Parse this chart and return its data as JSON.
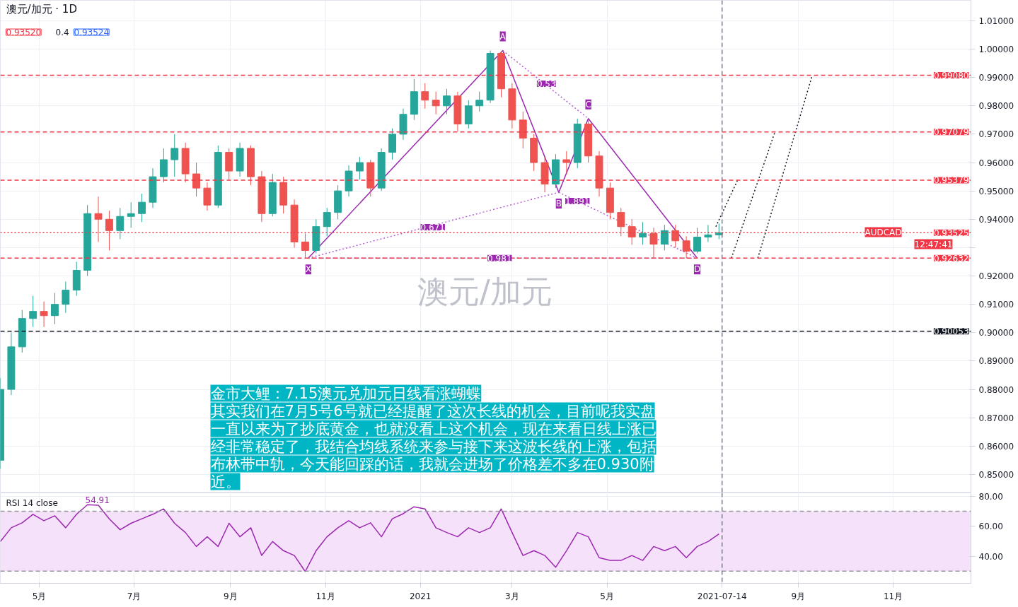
{
  "chart_data": [
    {
      "type": "candlestick",
      "title": "澳元/加元 · 1D",
      "x": [
        "2020-04-06",
        "2020-04-13",
        "2020-04-20",
        "2020-04-27",
        "2020-05-04",
        "2020-05-11",
        "2020-05-18",
        "2020-05-25",
        "2020-06-01",
        "2020-06-08",
        "2020-06-15",
        "2020-06-22",
        "2020-06-29",
        "2020-07-06",
        "2020-07-13",
        "2020-07-20",
        "2020-07-27",
        "2020-08-03",
        "2020-08-10",
        "2020-08-17",
        "2020-08-24",
        "2020-08-31",
        "2020-09-07",
        "2020-09-14",
        "2020-09-21",
        "2020-09-28",
        "2020-10-05",
        "2020-10-12",
        "2020-10-19",
        "2020-10-26",
        "2020-11-02",
        "2020-11-09",
        "2020-11-16",
        "2020-11-23",
        "2020-11-30",
        "2020-12-07",
        "2020-12-14",
        "2020-12-21",
        "2020-12-28",
        "2021-01-04",
        "2021-01-11",
        "2021-01-18",
        "2021-01-25",
        "2021-02-01",
        "2021-02-08",
        "2021-02-15",
        "2021-02-22",
        "2021-03-01",
        "2021-03-08",
        "2021-03-15",
        "2021-03-22",
        "2021-03-29",
        "2021-04-05",
        "2021-04-12",
        "2021-04-19",
        "2021-04-26",
        "2021-05-03",
        "2021-05-10",
        "2021-05-17",
        "2021-05-24",
        "2021-05-31",
        "2021-06-07",
        "2021-06-14",
        "2021-06-21",
        "2021-06-28",
        "2021-07-05",
        "2021-07-12"
      ],
      "ohlc": [
        [
          0.855,
          0.884,
          0.852,
          0.88
        ],
        [
          0.88,
          0.9,
          0.878,
          0.895
        ],
        [
          0.895,
          0.908,
          0.893,
          0.905
        ],
        [
          0.905,
          0.913,
          0.902,
          0.9075
        ],
        [
          0.9075,
          0.911,
          0.902,
          0.906
        ],
        [
          0.906,
          0.914,
          0.903,
          0.91
        ],
        [
          0.91,
          0.918,
          0.907,
          0.915
        ],
        [
          0.915,
          0.925,
          0.913,
          0.922
        ],
        [
          0.922,
          0.945,
          0.92,
          0.942
        ],
        [
          0.942,
          0.948,
          0.932,
          0.94
        ],
        [
          0.94,
          0.943,
          0.929,
          0.936
        ],
        [
          0.936,
          0.944,
          0.933,
          0.941
        ],
        [
          0.941,
          0.946,
          0.937,
          0.942
        ],
        [
          0.942,
          0.949,
          0.939,
          0.946
        ],
        [
          0.946,
          0.958,
          0.944,
          0.955
        ],
        [
          0.955,
          0.965,
          0.953,
          0.961
        ],
        [
          0.961,
          0.97,
          0.955,
          0.965
        ],
        [
          0.965,
          0.967,
          0.953,
          0.956
        ],
        [
          0.956,
          0.96,
          0.948,
          0.951
        ],
        [
          0.951,
          0.953,
          0.943,
          0.945
        ],
        [
          0.945,
          0.966,
          0.944,
          0.9636
        ],
        [
          0.9636,
          0.965,
          0.954,
          0.957
        ],
        [
          0.957,
          0.967,
          0.955,
          0.965
        ],
        [
          0.965,
          0.966,
          0.952,
          0.955
        ],
        [
          0.955,
          0.957,
          0.939,
          0.942
        ],
        [
          0.942,
          0.956,
          0.941,
          0.953
        ],
        [
          0.953,
          0.955,
          0.942,
          0.945
        ],
        [
          0.945,
          0.947,
          0.93,
          0.932
        ],
        [
          0.932,
          0.935,
          0.9263,
          0.929
        ],
        [
          0.929,
          0.94,
          0.928,
          0.9374
        ],
        [
          0.9374,
          0.944,
          0.934,
          0.9424
        ],
        [
          0.9424,
          0.952,
          0.94,
          0.95
        ],
        [
          0.95,
          0.959,
          0.948,
          0.957
        ],
        [
          0.957,
          0.962,
          0.954,
          0.96
        ],
        [
          0.96,
          0.961,
          0.948,
          0.951
        ],
        [
          0.951,
          0.965,
          0.95,
          0.9636
        ],
        [
          0.9636,
          0.972,
          0.961,
          0.97
        ],
        [
          0.97,
          0.979,
          0.968,
          0.977
        ],
        [
          0.977,
          0.9895,
          0.975,
          0.985
        ],
        [
          0.985,
          0.988,
          0.979,
          0.982
        ],
        [
          0.982,
          0.985,
          0.977,
          0.98
        ],
        [
          0.98,
          0.986,
          0.977,
          0.9835
        ],
        [
          0.9835,
          0.985,
          0.971,
          0.9736
        ],
        [
          0.9736,
          0.982,
          0.972,
          0.98
        ],
        [
          0.98,
          0.985,
          0.978,
          0.982
        ],
        [
          0.982,
          0.9995,
          0.981,
          0.9985
        ],
        [
          0.9985,
          0.999,
          0.983,
          0.986
        ],
        [
          0.986,
          0.988,
          0.972,
          0.975
        ],
        [
          0.975,
          0.978,
          0.965,
          0.9686
        ],
        [
          0.9686,
          0.97,
          0.957,
          0.96
        ],
        [
          0.96,
          0.962,
          0.9495,
          0.9524
        ],
        [
          0.9524,
          0.963,
          0.951,
          0.961
        ],
        [
          0.961,
          0.964,
          0.956,
          0.96
        ],
        [
          0.96,
          0.9755,
          0.958,
          0.9736
        ],
        [
          0.9736,
          0.975,
          0.96,
          0.9623
        ],
        [
          0.9623,
          0.964,
          0.948,
          0.951
        ],
        [
          0.951,
          0.953,
          0.94,
          0.9424
        ],
        [
          0.9424,
          0.944,
          0.934,
          0.9374
        ],
        [
          0.9374,
          0.94,
          0.931,
          0.9337
        ],
        [
          0.9337,
          0.939,
          0.931,
          0.935
        ],
        [
          0.935,
          0.937,
          0.9263,
          0.9312
        ],
        [
          0.9312,
          0.938,
          0.929,
          0.936
        ],
        [
          0.936,
          0.938,
          0.93,
          0.9324
        ],
        [
          0.9324,
          0.934,
          0.9263,
          0.9287
        ],
        [
          0.9287,
          0.937,
          0.928,
          0.9337
        ],
        [
          0.9337,
          0.938,
          0.932,
          0.9345
        ],
        [
          0.9345,
          0.9385,
          0.933,
          0.93525
        ]
      ],
      "series": [
        {
          "type": "line",
          "color": "#9c27b0",
          "line_style": "solid",
          "x": [
            "2020-10-21",
            "2021-02-23",
            "2021-03-31",
            "2021-04-19",
            "2021-06-28"
          ],
          "values": [
            0.9263,
            0.9995,
            0.9495,
            0.9755,
            0.9263
          ]
        },
        {
          "type": "line",
          "color": "#b55fd6",
          "line_style": "dotted",
          "x": [
            "2020-10-21",
            "2021-03-31"
          ],
          "values": [
            0.9263,
            0.9495
          ]
        },
        {
          "type": "line",
          "color": "#b55fd6",
          "line_style": "dotted",
          "x": [
            "2021-02-23",
            "2021-04-19"
          ],
          "values": [
            0.9995,
            0.9755
          ]
        },
        {
          "type": "line",
          "color": "#b55fd6",
          "line_style": "dotted",
          "x": [
            "2021-03-31",
            "2021-06-28"
          ],
          "values": [
            0.9495,
            0.9263
          ]
        },
        {
          "type": "line",
          "color": "#b55fd6",
          "line_style": "dotted",
          "x": [
            "2020-10-21",
            "2021-06-28"
          ],
          "values": [
            0.9263,
            0.9263
          ]
        },
        {
          "type": "line",
          "color": "#131722",
          "line_style": "dotted",
          "x": [
            "2021-07-10",
            "2021-07-24"
          ],
          "values": [
            0.9374,
            0.9538
          ]
        },
        {
          "type": "line",
          "color": "#131722",
          "line_style": "dotted",
          "x": [
            "2021-07-20",
            "2021-08-17"
          ],
          "values": [
            0.9263,
            0.9708
          ]
        },
        {
          "type": "line",
          "color": "#131722",
          "line_style": "dotted",
          "x": [
            "2021-08-06",
            "2021-09-10"
          ],
          "values": [
            0.9263,
            0.9908
          ]
        }
      ],
      "ref_lines": [
        {
          "axis": "y",
          "value": 0.9908,
          "label": "0.99080",
          "color": "#f23645",
          "line_style": "dashed"
        },
        {
          "axis": "y",
          "value": 0.97079,
          "label": "0.97079",
          "color": "#f23645",
          "line_style": "dashed"
        },
        {
          "axis": "y",
          "value": 0.95379,
          "label": "0.95379",
          "color": "#f23645",
          "line_style": "dashed"
        },
        {
          "axis": "y",
          "value": 0.92632,
          "label": "0.92632",
          "color": "#f23645",
          "line_style": "dashed"
        },
        {
          "axis": "y",
          "value": 0.93525,
          "label": "0.93525",
          "color": "#f23645",
          "line_style": "dotted"
        },
        {
          "axis": "y",
          "value": 0.90053,
          "label": "0.90053",
          "color": "#131722",
          "line_style": "dashed"
        },
        {
          "axis": "x",
          "value": "2021-07-14",
          "color": "#787b86",
          "line_style": "dashed"
        }
      ],
      "annotations": [
        "0.93520",
        "0.4",
        "0.93524",
        "澳元/加元",
        "金市大鲤：7.15澳元兑加元日线看涨蝴蝶",
        "其实我们在7月5号6号就已经提醒了这次长线的机会，目前呢我实盘一直以来为了抄底黄金，也就没看上这个机会，现在来看日线上涨已经非常稳定了，我结合均线系统来参与接下来这波长线的上涨，包括布林带中轨，今天能回踩的话，我就会进场了价格差不多在0.930附近。",
        "12:47:41",
        "AUDCAD",
        {
          "text": "X",
          "x": "2020-10-21",
          "y": 0.9263
        },
        {
          "text": "A",
          "x": "2021-02-23",
          "y": 0.9995
        },
        {
          "text": "B",
          "x": "2021-03-31",
          "y": 0.9495
        },
        {
          "text": "C",
          "x": "2021-04-19",
          "y": 0.9755
        },
        {
          "text": "D",
          "x": "2021-06-28",
          "y": 0.9263
        },
        {
          "text": "0.53",
          "x": "2021-03-23",
          "y": 0.9878
        },
        {
          "text": "0.671",
          "x": "2021-01-09",
          "y": 0.9372
        },
        {
          "text": "0.981",
          "x": "2021-02-21",
          "y": 0.9263
        },
        {
          "text": "1.891",
          "x": "2021-04-12",
          "y": 0.9464
        }
      ],
      "xlim": [
        "2020-04-06",
        "2021-12-21"
      ],
      "ylim": [
        0.8435,
        1.0172
      ],
      "xticks": [
        "2020-05-01",
        "2020-07-01",
        "2020-09-01",
        "2020-11-01",
        "2021-01-01",
        "2021-03-01",
        "2021-05-01",
        "2021-07-14",
        "2021-09-01",
        "2021-11-01"
      ],
      "yticks": [
        {
          "value": 0.85,
          "label": "0.85000"
        },
        {
          "value": 0.86,
          "label": "0.86000"
        },
        {
          "value": 0.87,
          "label": "0.87000"
        },
        {
          "value": 0.88,
          "label": "0.88000"
        },
        {
          "value": 0.89,
          "label": "0.89000"
        },
        {
          "value": 0.9,
          "label": "0.90000"
        },
        {
          "value": 0.91,
          "label": "0.91000"
        },
        {
          "value": 0.92,
          "label": "0.92000"
        },
        {
          "value": 0.93,
          "label": null
        },
        {
          "value": 0.94,
          "label": "0.94000"
        },
        {
          "value": 0.95,
          "label": "0.95000"
        },
        {
          "value": 0.96,
          "label": "0.96000"
        },
        {
          "value": 0.97,
          "label": "0.97000"
        },
        {
          "value": 0.98,
          "label": "0.98000"
        },
        {
          "value": 0.99,
          "label": "0.99000"
        },
        {
          "value": 1.0,
          "label": "1.00000"
        },
        {
          "value": 1.01,
          "label": "1.01000"
        }
      ],
      "tick_labels": "y",
      "grid": true
    },
    {
      "type": "line",
      "title": "RSI 14 close",
      "x": [
        "2020-04-06",
        "2020-04-13",
        "2020-04-20",
        "2020-04-27",
        "2020-05-04",
        "2020-05-11",
        "2020-05-18",
        "2020-05-25",
        "2020-06-01",
        "2020-06-08",
        "2020-06-15",
        "2020-06-22",
        "2020-06-29",
        "2020-07-06",
        "2020-07-13",
        "2020-07-20",
        "2020-07-27",
        "2020-08-03",
        "2020-08-10",
        "2020-08-17",
        "2020-08-24",
        "2020-08-31",
        "2020-09-07",
        "2020-09-14",
        "2020-09-21",
        "2020-09-28",
        "2020-10-05",
        "2020-10-12",
        "2020-10-19",
        "2020-10-26",
        "2020-11-02",
        "2020-11-09",
        "2020-11-16",
        "2020-11-23",
        "2020-11-30",
        "2020-12-07",
        "2020-12-14",
        "2020-12-21",
        "2020-12-28",
        "2021-01-04",
        "2021-01-11",
        "2021-01-18",
        "2021-01-25",
        "2021-02-01",
        "2021-02-08",
        "2021-02-15",
        "2021-02-22",
        "2021-03-01",
        "2021-03-08",
        "2021-03-15",
        "2021-03-22",
        "2021-03-29",
        "2021-04-05",
        "2021-04-12",
        "2021-04-19",
        "2021-04-26",
        "2021-05-03",
        "2021-05-10",
        "2021-05-17",
        "2021-05-24",
        "2021-05-31",
        "2021-06-07",
        "2021-06-14",
        "2021-06-21",
        "2021-06-28",
        "2021-07-05",
        "2021-07-12"
      ],
      "series": [
        {
          "color": "#9c27b0",
          "values": [
            49.8,
            59,
            62.3,
            68,
            63.7,
            67,
            59,
            68,
            74.4,
            74,
            65,
            57.7,
            62,
            65,
            68,
            71.6,
            62,
            55.8,
            46.5,
            53,
            46.5,
            62,
            53,
            59,
            40.5,
            49.8,
            43.7,
            40.5,
            29.8,
            43.7,
            53,
            59,
            63.7,
            59,
            62.3,
            53,
            65,
            68.4,
            73,
            71.6,
            59,
            55.8,
            53,
            59,
            55.8,
            59,
            71.6,
            55.8,
            40.5,
            43.7,
            40.5,
            32.6,
            43.7,
            55.8,
            53,
            39,
            37.2,
            37.2,
            40.5,
            37.2,
            46.5,
            43.7,
            46.5,
            39,
            46.5,
            49.8,
            54.91
          ]
        }
      ],
      "bands": [
        {
          "axis": "y",
          "from": 30,
          "to": 70,
          "color": "#f6e1fa"
        }
      ],
      "ref_lines": [
        {
          "axis": "y",
          "value": 70,
          "color": "#9598a1",
          "line_style": "dashed"
        },
        {
          "axis": "y",
          "value": 30,
          "color": "#9598a1",
          "line_style": "dashed"
        },
        {
          "axis": "x",
          "value": "2021-07-14",
          "color": "#787b86",
          "line_style": "dashed"
        }
      ],
      "annotations": [
        "54.91"
      ],
      "xlim": [
        "2020-04-06",
        "2021-12-21"
      ],
      "ylim": [
        21.9,
        82.3
      ],
      "xticks": [
        {
          "value": "2020-05-01",
          "label": "5月"
        },
        {
          "value": "2020-07-01",
          "label": "7月"
        },
        {
          "value": "2020-09-01",
          "label": "9月"
        },
        {
          "value": "2020-11-01",
          "label": "11月"
        },
        {
          "value": "2021-01-01",
          "label": "2021"
        },
        {
          "value": "2021-03-01",
          "label": "3月"
        },
        {
          "value": "2021-05-01",
          "label": "5月"
        },
        {
          "value": "2021-07-14",
          "label": "2021-07-14"
        },
        {
          "value": "2021-09-01",
          "label": "9月"
        },
        {
          "value": "2021-11-01",
          "label": "11月"
        }
      ],
      "yticks": [
        {
          "value": 40,
          "label": "40.00"
        },
        {
          "value": 60,
          "label": "60.00"
        },
        {
          "value": 80,
          "label": "80.00"
        }
      ],
      "grid": true
    }
  ]
}
